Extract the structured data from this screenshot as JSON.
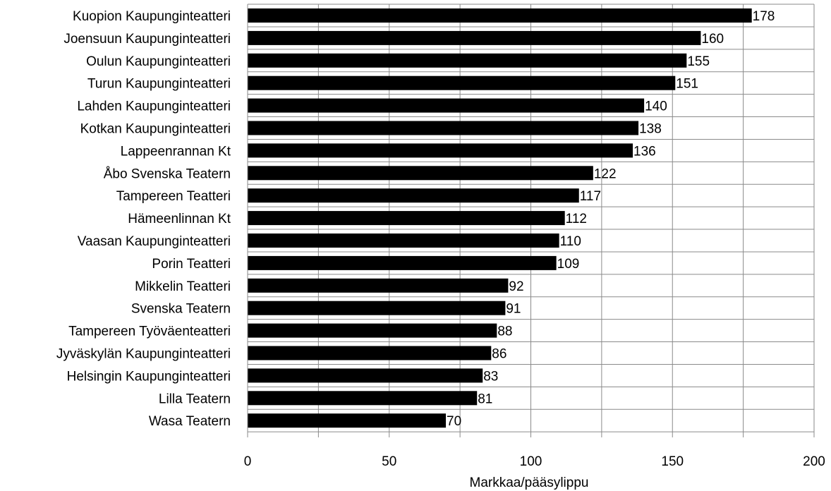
{
  "chart_data": {
    "type": "bar",
    "orientation": "horizontal",
    "title": "",
    "xlabel": "Markkaa/pääsylippu",
    "ylabel": "",
    "xlim": [
      0,
      200
    ],
    "x_ticks": [
      0,
      50,
      100,
      150,
      200
    ],
    "grid": true,
    "legend": "none",
    "bar_color": "#000000",
    "categories": [
      "Kuopion Kaupunginteatteri",
      "Joensuun Kaupunginteatteri",
      "Oulun Kaupunginteatteri",
      "Turun Kaupunginteatteri",
      "Lahden Kaupunginteatteri",
      "Kotkan Kaupunginteatteri",
      "Lappeenrannan Kt",
      "Åbo Svenska Teatern",
      "Tampereen Teatteri",
      "Hämeenlinnan Kt",
      "Vaasan Kaupunginteatteri",
      "Porin Teatteri",
      "Mikkelin Teatteri",
      "Svenska Teatern",
      "Tampereen Työväenteatteri",
      "Jyväskylän Kaupunginteatteri",
      "Helsingin Kaupunginteatteri",
      "Lilla Teatern",
      "Wasa Teatern"
    ],
    "values": [
      178,
      160,
      155,
      151,
      140,
      138,
      136,
      122,
      117,
      112,
      110,
      109,
      92,
      91,
      88,
      86,
      83,
      81,
      70
    ]
  }
}
